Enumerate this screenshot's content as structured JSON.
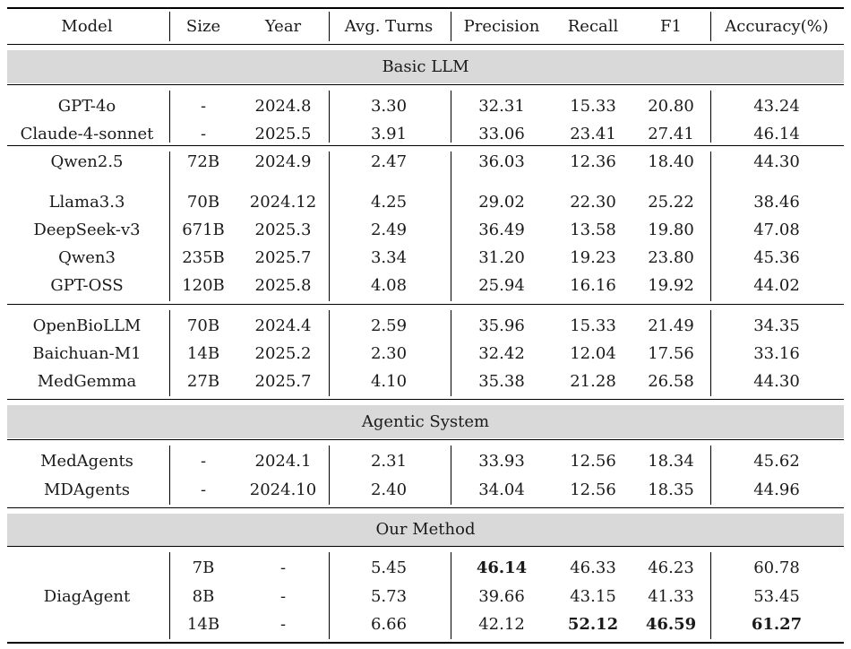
{
  "headers": [
    "Model",
    "Size",
    "Year",
    "Avg. Turns",
    "Precision",
    "Recall",
    "F1",
    "Accuracy(%)"
  ],
  "sections": [
    {
      "title": "Basic LLM"
    },
    {
      "title": "Agentic System"
    },
    {
      "title": "Our Method"
    }
  ],
  "rows": [
    [
      "GPT-4o",
      "-",
      "2024.8",
      "3.30",
      "32.31",
      "15.33",
      "20.80",
      "43.24"
    ],
    [
      "Claude-4-sonnet",
      "-",
      "2025.5",
      "3.91",
      "33.06",
      "23.41",
      "27.41",
      "46.14"
    ],
    [
      "Qwen2.5",
      "72B",
      "2024.9",
      "2.47",
      "36.03",
      "12.36",
      "18.40",
      "44.30"
    ],
    [
      "Llama3.3",
      "70B",
      "2024.12",
      "4.25",
      "29.02",
      "22.30",
      "25.22",
      "38.46"
    ],
    [
      "DeepSeek-v3",
      "671B",
      "2025.3",
      "2.49",
      "36.49",
      "13.58",
      "19.80",
      "47.08"
    ],
    [
      "Qwen3",
      "235B",
      "2025.7",
      "3.34",
      "31.20",
      "19.23",
      "23.80",
      "45.36"
    ],
    [
      "GPT-OSS",
      "120B",
      "2025.8",
      "4.08",
      "25.94",
      "16.16",
      "19.92",
      "44.02"
    ],
    [
      "OpenBioLLM",
      "70B",
      "2024.4",
      "2.59",
      "35.96",
      "15.33",
      "21.49",
      "34.35"
    ],
    [
      "Baichuan-M1",
      "14B",
      "2025.2",
      "2.30",
      "32.42",
      "12.04",
      "17.56",
      "33.16"
    ],
    [
      "MedGemma",
      "27B",
      "2025.7",
      "4.10",
      "35.38",
      "21.28",
      "26.58",
      "44.30"
    ],
    [
      "MedAgents",
      "-",
      "2024.1",
      "2.31",
      "33.93",
      "12.56",
      "18.34",
      "45.62"
    ],
    [
      "MDAgents",
      "-",
      "2024.10",
      "2.40",
      "34.04",
      "12.56",
      "18.35",
      "44.96"
    ]
  ],
  "ours": {
    "model": "DiagAgent",
    "rows": [
      [
        "7B",
        "-",
        "5.45",
        "46.14",
        "46.33",
        "46.23",
        "60.78"
      ],
      [
        "8B",
        "-",
        "5.73",
        "39.66",
        "43.15",
        "41.33",
        "53.45"
      ],
      [
        "14B",
        "-",
        "6.66",
        "42.12",
        "52.12",
        "46.59",
        "61.27"
      ]
    ]
  }
}
